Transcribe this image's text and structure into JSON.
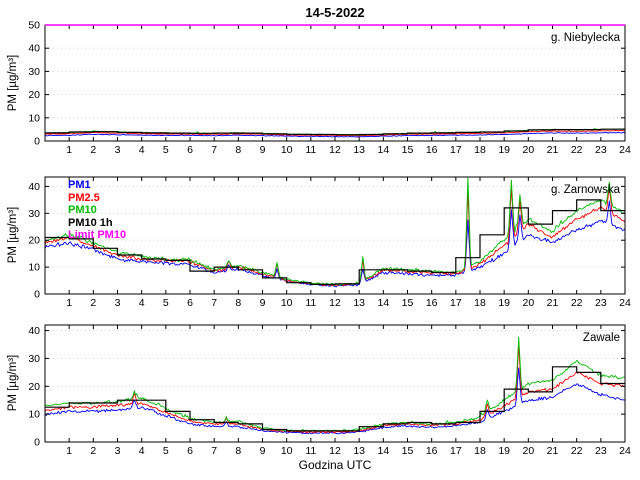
{
  "title": "14-5-2022",
  "xlabel": "Godzina UTC",
  "ylabel": "PM [µg/m³]",
  "legend": [
    {
      "label": "PM1",
      "color": "#0000ff"
    },
    {
      "label": "PM2.5",
      "color": "#ff0000"
    },
    {
      "label": "PM10",
      "color": "#00bb00"
    },
    {
      "label": "PM10 1h",
      "color": "#000000"
    },
    {
      "label": "Limit PM10",
      "color": "#ff00ff"
    }
  ],
  "axis_common": {
    "xlim": [
      0,
      24
    ],
    "xticks": [
      1,
      2,
      3,
      4,
      5,
      6,
      7,
      8,
      9,
      10,
      11,
      12,
      13,
      14,
      15,
      16,
      17,
      18,
      19,
      20,
      21,
      22,
      23,
      24
    ]
  },
  "chart_data": [
    {
      "type": "line",
      "station": "g. Niebylecka",
      "ylim": [
        0,
        50
      ],
      "yticks": [
        0,
        10,
        20,
        30,
        40,
        50
      ],
      "noise": 0.35,
      "series": [
        {
          "name": "PM1",
          "color": "#0000ff",
          "values": [
            2.4,
            2.5,
            2.9,
            2.7,
            2.5,
            2.4,
            2.4,
            2.3,
            2.5,
            2.3,
            2.1,
            2.0,
            1.9,
            1.8,
            2.1,
            2.3,
            2.4,
            2.5,
            2.6,
            2.8,
            3.2,
            3.5,
            3.4,
            3.5,
            3.6
          ]
        },
        {
          "name": "PM2.5",
          "color": "#ff0000",
          "values": [
            3.0,
            3.1,
            3.6,
            3.4,
            3.1,
            3.0,
            3.0,
            2.9,
            3.1,
            2.9,
            2.6,
            2.5,
            2.4,
            2.3,
            2.6,
            2.9,
            3.0,
            3.1,
            3.3,
            3.5,
            4.0,
            4.3,
            4.2,
            4.3,
            4.5
          ]
        },
        {
          "name": "PM10",
          "color": "#00bb00",
          "values": [
            3.5,
            3.6,
            4.2,
            3.9,
            3.6,
            3.5,
            3.4,
            3.3,
            3.6,
            3.3,
            3.0,
            2.9,
            2.8,
            2.6,
            3.0,
            3.3,
            3.5,
            3.6,
            3.8,
            4.0,
            4.6,
            5.0,
            4.8,
            5.0,
            5.2
          ]
        }
      ],
      "hourly_step": {
        "name": "PM10 1h",
        "color": "#000000",
        "values": [
          3.5,
          3.9,
          4.0,
          3.7,
          3.5,
          3.4,
          3.3,
          3.4,
          3.4,
          3.1,
          2.9,
          2.8,
          2.7,
          2.8,
          3.1,
          3.4,
          3.5,
          3.7,
          3.9,
          4.3,
          4.8,
          4.9,
          4.9,
          5.1
        ]
      },
      "limit": {
        "name": "Limit PM10",
        "color": "#ff00ff",
        "value": 50
      },
      "spikes": []
    },
    {
      "type": "line",
      "station": "g. Zarnowska",
      "ylim": [
        0,
        43.5
      ],
      "yticks": [
        0,
        10,
        20,
        30,
        40
      ],
      "noise": 0.9,
      "series": [
        {
          "name": "PM1",
          "color": "#0000ff",
          "values": [
            17.5,
            19,
            16.5,
            13,
            12,
            11.5,
            11,
            8,
            9,
            7,
            4.8,
            3.5,
            3,
            3.5,
            8,
            7.5,
            7,
            7,
            10,
            15,
            22,
            19,
            24,
            27,
            24
          ]
        },
        {
          "name": "PM2.5",
          "color": "#ff0000",
          "values": [
            19,
            21,
            18,
            14.5,
            13,
            12.5,
            12,
            8.5,
            10,
            7.5,
            5,
            3.8,
            3.3,
            3.8,
            9,
            8.5,
            8,
            7.5,
            11,
            18,
            26,
            21,
            28,
            32,
            27
          ]
        },
        {
          "name": "PM10",
          "color": "#00bb00",
          "values": [
            20,
            22,
            19,
            15.5,
            14,
            13,
            12.5,
            9,
            10.5,
            8,
            5.5,
            4,
            3.5,
            4,
            9.5,
            9,
            8.5,
            8,
            12,
            20,
            28,
            23,
            31,
            35,
            30
          ]
        }
      ],
      "hourly_step": {
        "name": "PM10 1h",
        "color": "#000000",
        "values": [
          21,
          20.5,
          17,
          14.5,
          13,
          12.5,
          8.5,
          10,
          9,
          6,
          4.2,
          3.6,
          3.8,
          9,
          9,
          8.5,
          8,
          13.5,
          22,
          32,
          26,
          31,
          35,
          31
        ]
      },
      "limit": {
        "name": "Limit PM10",
        "color": "#ff00ff",
        "value": 50
      },
      "spikes": [
        {
          "x": 7.6,
          "v": 13
        },
        {
          "x": 9.6,
          "v": 12
        },
        {
          "x": 13.15,
          "v": 14
        },
        {
          "x": 17.5,
          "v": 43
        },
        {
          "x": 19.3,
          "v": 43
        },
        {
          "x": 19.65,
          "v": 37
        },
        {
          "x": 23.35,
          "v": 42
        }
      ]
    },
    {
      "type": "line",
      "station": "Zawale",
      "ylim": [
        0,
        42
      ],
      "yticks": [
        0,
        10,
        20,
        30,
        40
      ],
      "noise": 0.7,
      "series": [
        {
          "name": "PM1",
          "color": "#0000ff",
          "values": [
            10,
            11,
            11,
            11.5,
            12.5,
            9.5,
            6.5,
            5.5,
            5.5,
            4,
            3.4,
            3.2,
            3.2,
            3.6,
            5.2,
            5.8,
            5.3,
            5.8,
            7,
            11,
            15,
            16,
            21,
            17,
            15
          ]
        },
        {
          "name": "PM2.5",
          "color": "#ff0000",
          "values": [
            11.5,
            12.5,
            12.5,
            13,
            14,
            10.5,
            7.5,
            6.5,
            6.5,
            4.5,
            3.8,
            3.6,
            3.6,
            4,
            6,
            6.5,
            6,
            6.5,
            8,
            13,
            18,
            19,
            25,
            21,
            20
          ]
        },
        {
          "name": "PM10",
          "color": "#00bb00",
          "values": [
            13,
            14,
            14,
            14.5,
            16,
            12,
            8.5,
            7,
            7.5,
            5,
            4.2,
            4,
            4,
            4.5,
            6.5,
            7,
            6.5,
            7,
            9,
            15,
            21,
            22,
            29,
            24,
            23
          ]
        }
      ],
      "hourly_step": {
        "name": "PM10 1h",
        "color": "#000000",
        "values": [
          12.5,
          14,
          14,
          15,
          15,
          11,
          8,
          7,
          6.5,
          4.5,
          4,
          4,
          4,
          5.5,
          6.5,
          7,
          6.5,
          7,
          11,
          19,
          18,
          27,
          25,
          21
        ]
      },
      "limit": {
        "name": "Limit PM10",
        "color": "#ff00ff",
        "value": 50
      },
      "spikes": [
        {
          "x": 3.7,
          "v": 18
        },
        {
          "x": 7.5,
          "v": 9
        },
        {
          "x": 18.3,
          "v": 15
        },
        {
          "x": 19.6,
          "v": 38
        }
      ]
    }
  ]
}
